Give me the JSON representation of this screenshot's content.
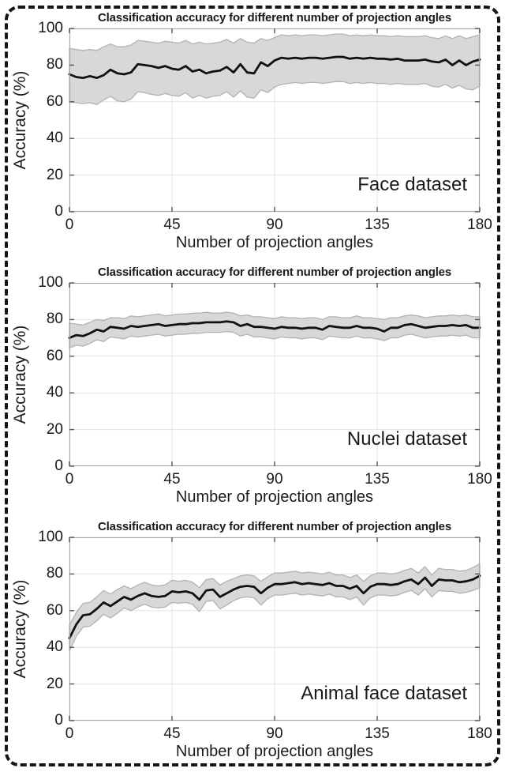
{
  "figure": {
    "background": "#ffffff",
    "border_color": "#151515",
    "text_color": "#1a1a1a",
    "grid_color": "#e4e4e4",
    "box_color": "#a8a8a8",
    "tick_color": "#555555",
    "band_fill": "#d8d8d8",
    "band_edge": "#b2b2b2",
    "line_color": "#111111"
  },
  "chart_data": [
    {
      "type": "line",
      "title": "Classification accuracy for different number of projection angles",
      "xlabel": "Number of projection angles",
      "ylabel": "Accuracy (%)",
      "annotation": "Face dataset",
      "xlim": [
        0,
        180
      ],
      "ylim": [
        0,
        100
      ],
      "xticks": [
        0,
        45,
        90,
        135,
        180
      ],
      "yticks": [
        0,
        20,
        40,
        60,
        80,
        100
      ],
      "grid": true,
      "legend": "none",
      "x": [
        0,
        3,
        6,
        9,
        12,
        15,
        18,
        21,
        24,
        27,
        30,
        33,
        36,
        39,
        42,
        45,
        48,
        51,
        54,
        57,
        60,
        63,
        66,
        69,
        72,
        75,
        78,
        81,
        84,
        87,
        90,
        93,
        96,
        99,
        102,
        105,
        108,
        111,
        114,
        117,
        120,
        123,
        126,
        129,
        132,
        135,
        138,
        141,
        144,
        147,
        150,
        153,
        156,
        159,
        162,
        165,
        168,
        171,
        174,
        177,
        180
      ],
      "mean": [
        75,
        73.5,
        73,
        74,
        73,
        74.5,
        77.5,
        75.5,
        75,
        76,
        80.5,
        80,
        79.5,
        78.5,
        79.5,
        78,
        77.5,
        79.5,
        76.5,
        77.5,
        75.5,
        76.5,
        77,
        79,
        76,
        80.5,
        76,
        75.5,
        81.5,
        79.5,
        82.5,
        84,
        83.5,
        84,
        83.5,
        84,
        84,
        83.5,
        84,
        84.5,
        84.5,
        83.5,
        84,
        83.5,
        84,
        83.5,
        83.5,
        83,
        83.5,
        82.5,
        82.5,
        82.5,
        83,
        82,
        81.5,
        83,
        80,
        82.5,
        80,
        82,
        83
      ],
      "band_upper": [
        89,
        88.5,
        88,
        88.5,
        88,
        90,
        91.5,
        90,
        90,
        91,
        93.5,
        93,
        92.5,
        92,
        93,
        92.5,
        92,
        93.5,
        91.5,
        92.5,
        91.5,
        92,
        92.5,
        94,
        92,
        94.5,
        92.5,
        92,
        94.5,
        93.5,
        95,
        96.5,
        96,
        96.5,
        96,
        96.5,
        96.5,
        96,
        96.5,
        97,
        97,
        96,
        96.5,
        96,
        96.5,
        96,
        96,
        95.5,
        96,
        95.5,
        95.5,
        95.5,
        96,
        95,
        94.5,
        96,
        94.5,
        96,
        94.5,
        95.5,
        96.5
      ],
      "band_lower": [
        60,
        59.5,
        59,
        59.5,
        58.5,
        61,
        63,
        60.5,
        60,
        61.5,
        65.5,
        65,
        64,
        63.5,
        64.5,
        63.5,
        63,
        65,
        62,
        63.5,
        62,
        63,
        63.5,
        65.5,
        62.5,
        66,
        62.5,
        62,
        66.5,
        65,
        68,
        69.5,
        70,
        70.5,
        70,
        70.5,
        70.5,
        70,
        70.5,
        71,
        71,
        70,
        70.5,
        70,
        70.5,
        70,
        70,
        69.5,
        70,
        69.5,
        69.5,
        69.5,
        70,
        68.5,
        68,
        69.5,
        67.5,
        69,
        67,
        66.5,
        68.5
      ]
    },
    {
      "type": "line",
      "title": "Classification accuracy for different number of projection angles",
      "xlabel": "Number of projection angles",
      "ylabel": "Accuracy (%)",
      "annotation": "Nuclei dataset",
      "xlim": [
        0,
        180
      ],
      "ylim": [
        0,
        100
      ],
      "xticks": [
        0,
        45,
        90,
        135,
        180
      ],
      "yticks": [
        0,
        20,
        40,
        60,
        80,
        100
      ],
      "grid": true,
      "legend": "none",
      "x": [
        0,
        3,
        6,
        9,
        12,
        15,
        18,
        21,
        24,
        27,
        30,
        33,
        36,
        39,
        42,
        45,
        48,
        51,
        54,
        57,
        60,
        63,
        66,
        69,
        72,
        75,
        78,
        81,
        84,
        87,
        90,
        93,
        96,
        99,
        102,
        105,
        108,
        111,
        114,
        117,
        120,
        123,
        126,
        129,
        132,
        135,
        138,
        141,
        144,
        147,
        150,
        153,
        156,
        159,
        162,
        165,
        168,
        171,
        174,
        177,
        180
      ],
      "mean": [
        70,
        71.5,
        71,
        72.5,
        74.5,
        73.5,
        76,
        75.5,
        75,
        76.5,
        76,
        76.5,
        77,
        77.5,
        76.5,
        77,
        77.5,
        77.5,
        78,
        78,
        78.5,
        78.5,
        78.5,
        79,
        78.5,
        76.5,
        77.5,
        76,
        76,
        75.5,
        75,
        76,
        75.5,
        75.5,
        75,
        75.5,
        75.5,
        74.5,
        76.5,
        76,
        75.5,
        75.5,
        76.5,
        75.5,
        75.5,
        75,
        73.5,
        75.5,
        75.5,
        77,
        77.5,
        76.5,
        75.5,
        76,
        76.5,
        76.5,
        77,
        76.5,
        77,
        75.5,
        75.5
      ],
      "band_upper": [
        78,
        77.5,
        77,
        78.5,
        80,
        79.5,
        81,
        81,
        80.5,
        82,
        81.5,
        82,
        82.5,
        83,
        82,
        82.5,
        83,
        83,
        83.5,
        83.5,
        84,
        83.5,
        83.5,
        84,
        83.5,
        82,
        82.5,
        81.5,
        81.5,
        81,
        80.5,
        81.5,
        81,
        81,
        80.5,
        81,
        81,
        80,
        81.5,
        81.5,
        81,
        81,
        82,
        81,
        81,
        80.5,
        80,
        81,
        81,
        82,
        82.5,
        82,
        81,
        81.5,
        82,
        82,
        82.5,
        82,
        82.5,
        81.5,
        81.5
      ],
      "band_lower": [
        64.5,
        66,
        65.5,
        67,
        69,
        68,
        70.5,
        70,
        69.5,
        71,
        70.5,
        71,
        71.5,
        72,
        71,
        71.5,
        72,
        72,
        72.5,
        72.5,
        73,
        73,
        73,
        73.5,
        73,
        71,
        72,
        70.5,
        70.5,
        70,
        69.5,
        70.5,
        70,
        70,
        69.5,
        70,
        70,
        69,
        71,
        70.5,
        70,
        70,
        71,
        70,
        70,
        69.5,
        68.5,
        70,
        70,
        71.5,
        72,
        71,
        70,
        70.5,
        71,
        71,
        71.5,
        71,
        71.5,
        70,
        70
      ]
    },
    {
      "type": "line",
      "title": "Classification accuracy for different number of projection angles",
      "xlabel": "Number of projection angles",
      "ylabel": "Accuracy (%)",
      "annotation": "Animal face dataset",
      "xlim": [
        0,
        180
      ],
      "ylim": [
        0,
        100
      ],
      "xticks": [
        0,
        45,
        90,
        135,
        180
      ],
      "yticks": [
        0,
        20,
        40,
        60,
        80,
        100
      ],
      "grid": true,
      "legend": "none",
      "x": [
        0,
        3,
        6,
        9,
        12,
        15,
        18,
        21,
        24,
        27,
        30,
        33,
        36,
        39,
        42,
        45,
        48,
        51,
        54,
        57,
        60,
        63,
        66,
        69,
        72,
        75,
        78,
        81,
        84,
        87,
        90,
        93,
        96,
        99,
        102,
        105,
        108,
        111,
        114,
        117,
        120,
        123,
        126,
        129,
        132,
        135,
        138,
        141,
        144,
        147,
        150,
        153,
        156,
        159,
        162,
        165,
        168,
        171,
        174,
        177,
        180
      ],
      "mean": [
        45,
        52.5,
        57.5,
        58,
        61,
        64.5,
        62.5,
        65,
        67.5,
        66,
        68,
        69.5,
        68,
        67.5,
        68,
        70.5,
        70,
        70.5,
        69.5,
        66,
        71,
        71.5,
        67.5,
        69.5,
        71.5,
        73,
        73.5,
        73,
        69.5,
        72.5,
        74.5,
        74.5,
        75,
        75.5,
        74.5,
        75,
        74.5,
        74,
        75,
        73.5,
        73.5,
        72,
        73.5,
        69.5,
        73,
        74.5,
        74.5,
        74,
        74.5,
        76,
        77,
        74.5,
        78,
        73.5,
        77,
        76.5,
        76.5,
        75.5,
        76,
        77,
        79
      ],
      "band_upper": [
        52,
        59,
        64,
        64.5,
        67.5,
        71,
        69,
        71.5,
        73.5,
        72,
        74,
        75.5,
        74,
        73.5,
        74,
        76.5,
        76,
        76.5,
        75.5,
        72.5,
        77,
        77.5,
        74,
        76,
        77.5,
        79,
        79.5,
        79,
        76,
        78.5,
        80.5,
        80.5,
        81,
        81.5,
        80.5,
        81,
        80.5,
        80,
        81,
        79.5,
        79.5,
        78,
        79.5,
        76,
        79,
        80.5,
        80.5,
        80,
        80.5,
        82,
        83,
        80.5,
        84,
        79.5,
        83,
        82.5,
        82.5,
        81.5,
        82,
        83.5,
        85.5
      ],
      "band_lower": [
        38,
        46,
        51,
        51.5,
        54.5,
        58,
        56,
        58.5,
        61.5,
        60,
        62,
        63.5,
        62,
        61.5,
        62,
        64.5,
        64,
        64.5,
        63.5,
        59.5,
        65,
        65.5,
        61,
        63,
        65.5,
        67,
        67.5,
        67,
        63,
        66.5,
        68.5,
        68.5,
        69,
        69.5,
        68.5,
        69,
        68.5,
        68,
        69,
        67.5,
        67.5,
        66,
        67.5,
        63,
        67,
        68.5,
        68.5,
        68,
        68.5,
        70,
        71,
        68.5,
        72,
        67.5,
        71,
        70.5,
        70.5,
        69.5,
        70,
        71,
        72.5
      ]
    }
  ]
}
